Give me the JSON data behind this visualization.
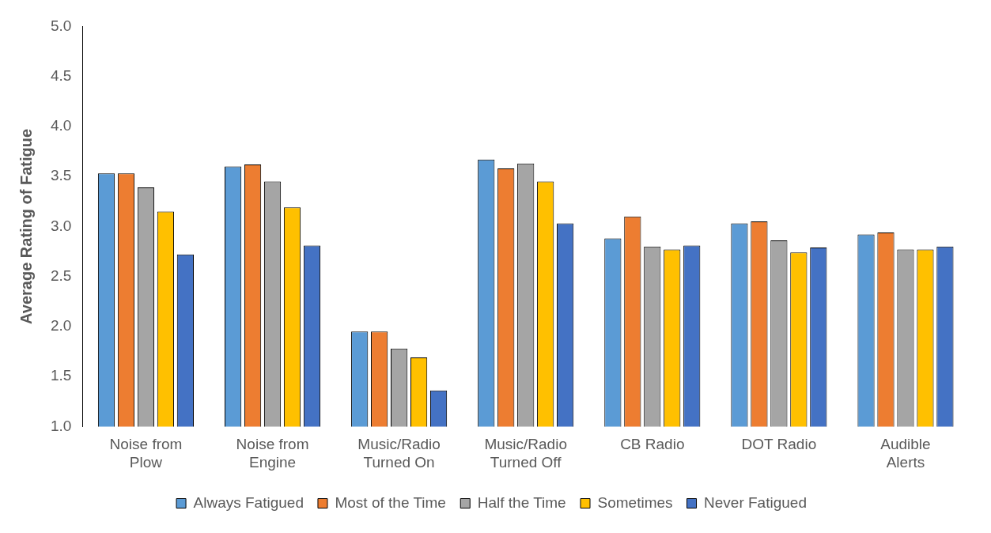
{
  "chart_data": {
    "type": "bar",
    "ylabel": "Average Rating of Fatigue",
    "categories": [
      "Noise from Plow",
      "Noise from Engine",
      "Music/Radio Turned On",
      "Music/Radio Turned Off",
      "CB Radio",
      "DOT Radio",
      "Audible Alerts"
    ],
    "series": [
      {
        "name": "Always Fatigued",
        "color": "#5b9bd5",
        "values": [
          3.53,
          3.6,
          1.95,
          3.67,
          2.88,
          3.03,
          2.92
        ]
      },
      {
        "name": "Most of the Time",
        "color": "#ed7d31",
        "values": [
          3.53,
          3.62,
          1.95,
          3.58,
          3.1,
          3.05,
          2.94
        ]
      },
      {
        "name": "Half the Time",
        "color": "#a5a5a5",
        "values": [
          3.39,
          3.45,
          1.78,
          3.63,
          2.8,
          2.86,
          2.77
        ]
      },
      {
        "name": "Sometimes",
        "color": "#ffc000",
        "values": [
          3.15,
          3.19,
          1.69,
          3.45,
          2.77,
          2.74,
          2.77
        ]
      },
      {
        "name": "Never Fatigued",
        "color": "#4472c4",
        "values": [
          2.72,
          2.81,
          1.36,
          3.03,
          2.81,
          2.79,
          2.8
        ]
      }
    ],
    "ylim": [
      1,
      5
    ],
    "yticks": [
      {
        "value": 1,
        "label": "1.0"
      },
      {
        "value": 1.5,
        "label": "1.5"
      },
      {
        "value": 2,
        "label": "2.0"
      },
      {
        "value": 2.5,
        "label": "2.5"
      },
      {
        "value": 3,
        "label": "3.0"
      },
      {
        "value": 3.5,
        "label": "3.5"
      },
      {
        "value": 4,
        "label": "4.0"
      },
      {
        "value": 4.5,
        "label": "4.5"
      },
      {
        "value": 5,
        "label": "5.0"
      }
    ],
    "grid": false,
    "legend": "bottom"
  }
}
